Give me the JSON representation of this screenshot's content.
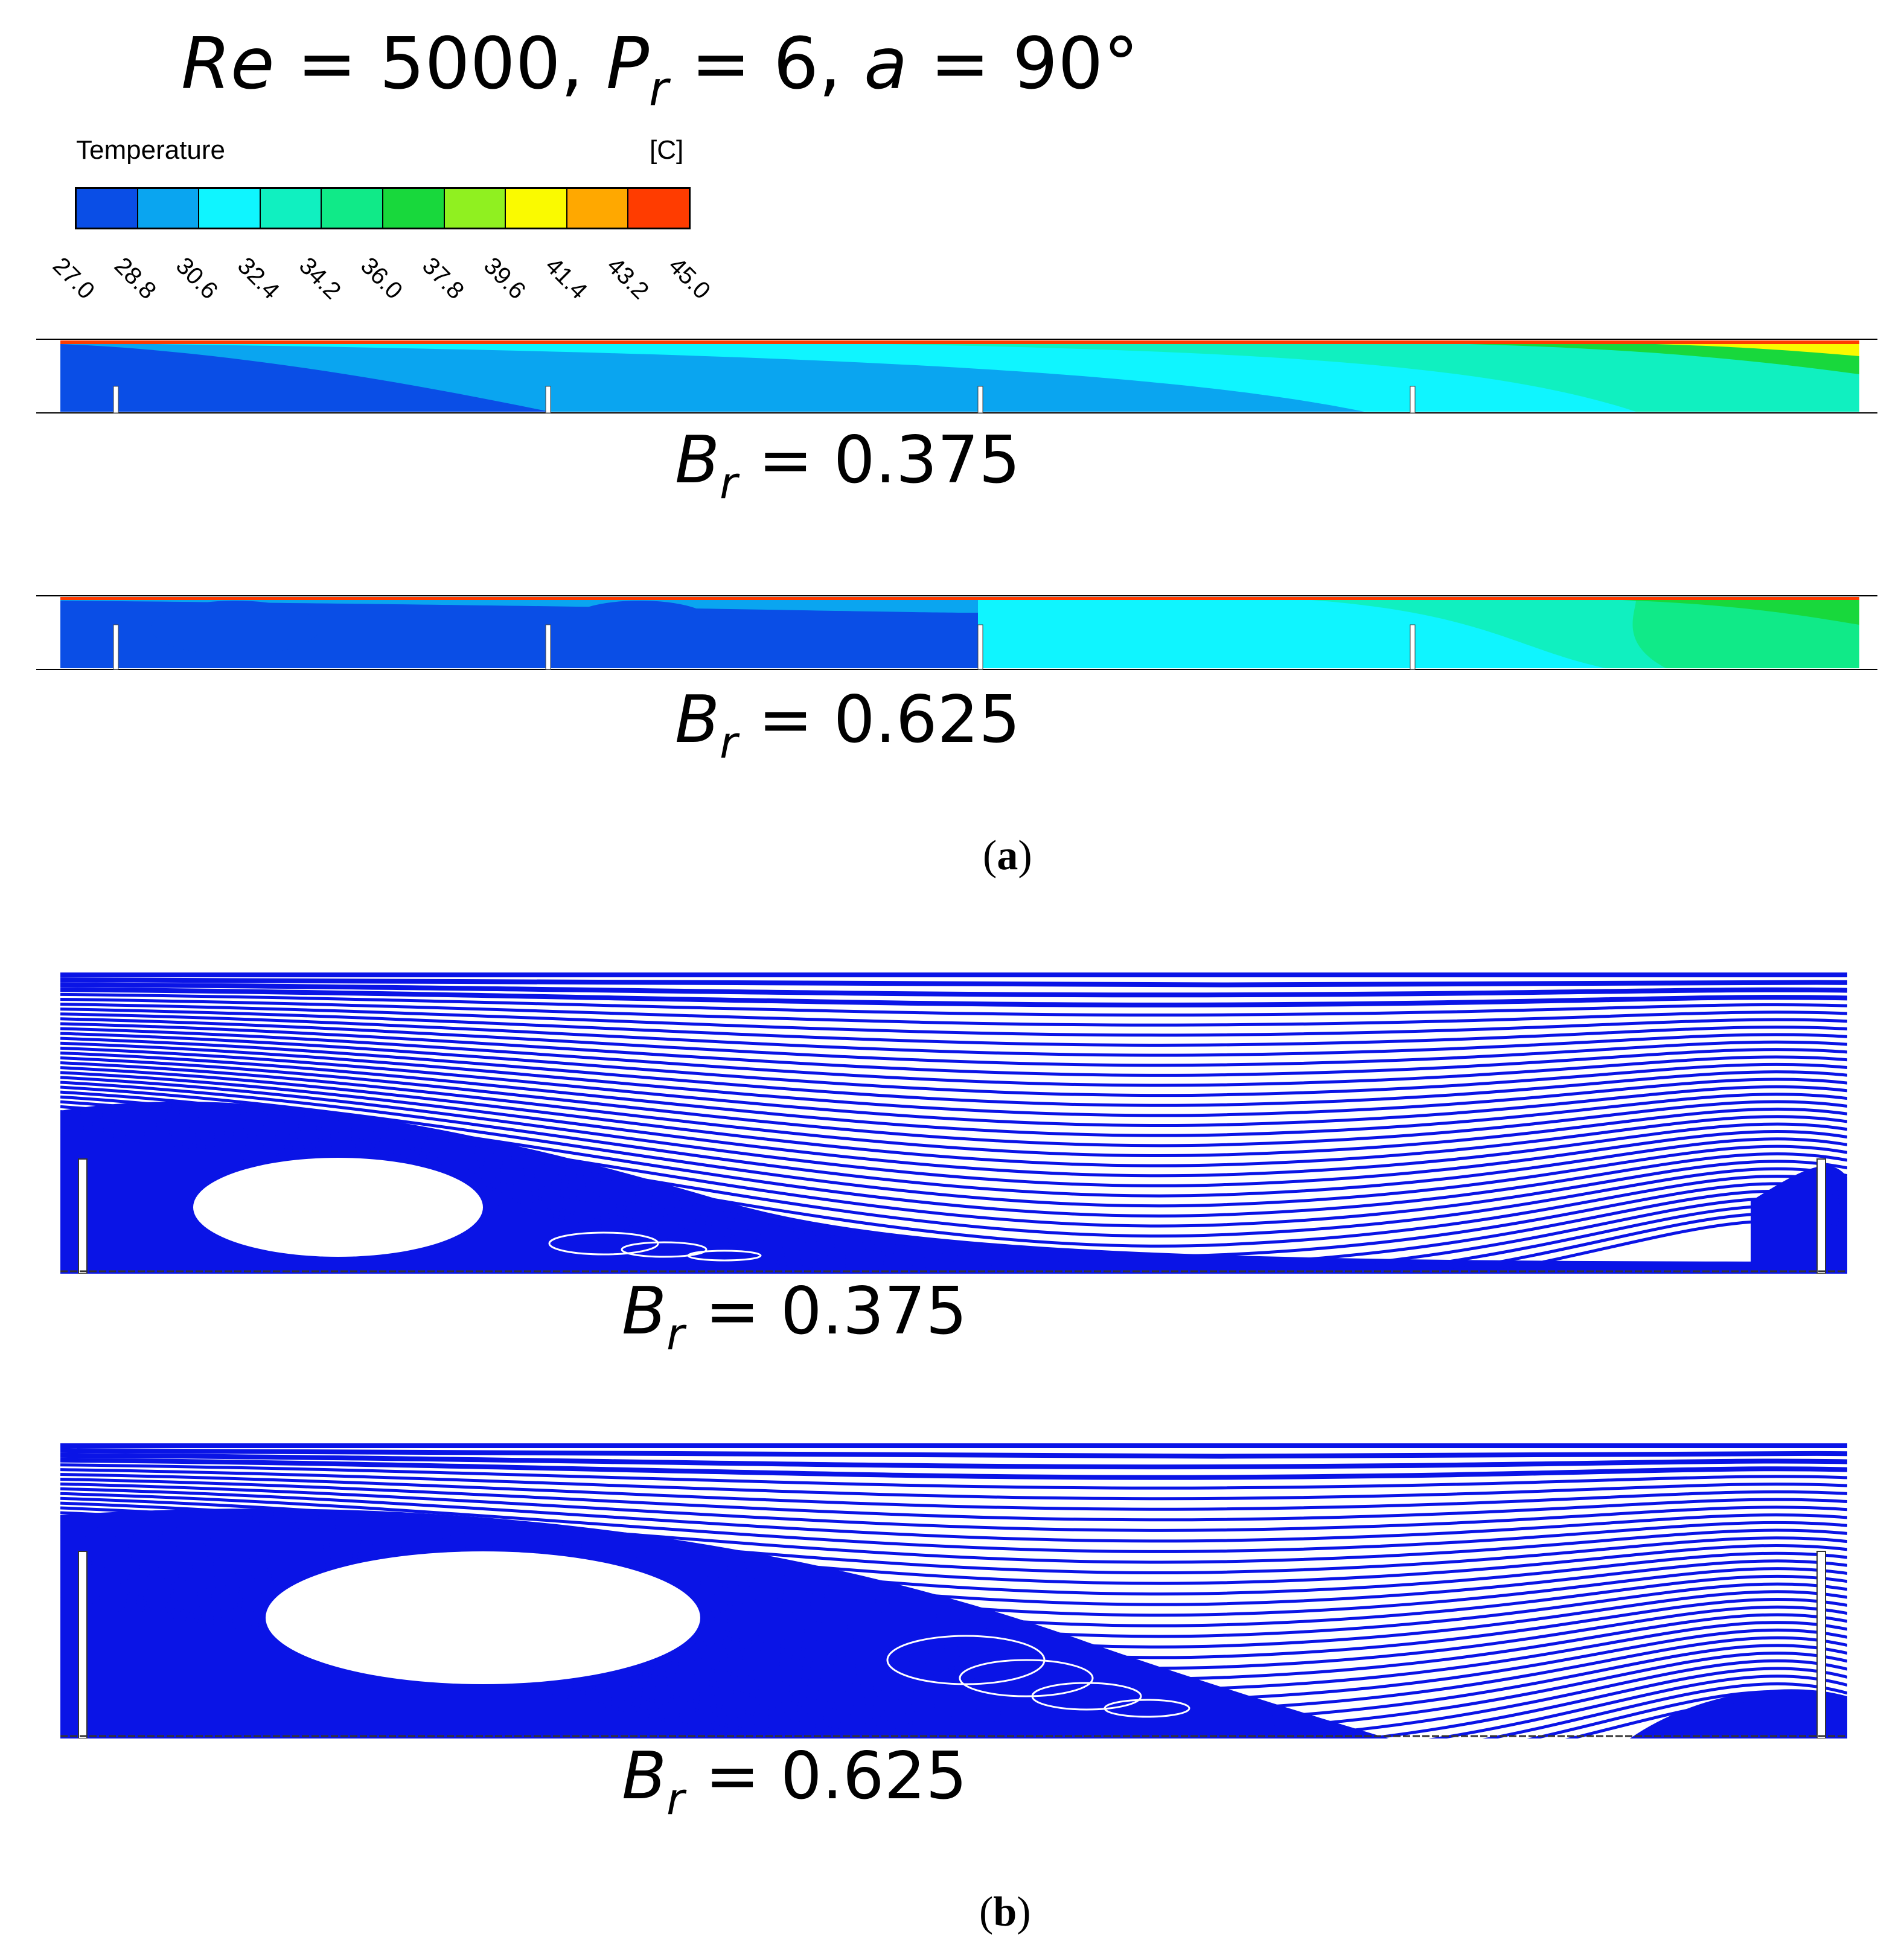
{
  "title": {
    "re": "Re",
    "re_val": " = 5000, ",
    "p": "P",
    "p_sub": "r",
    "p_val": " = 6, ",
    "a": "a",
    "a_val": " = 90°"
  },
  "legend": {
    "title": "Temperature",
    "unit": "[C]",
    "colors": [
      "#0a4ee6",
      "#0aa5f0",
      "#0ff5ff",
      "#10f0c0",
      "#10ea88",
      "#18d83c",
      "#90f020",
      "#fafa00",
      "#ffa800",
      "#ff3c00"
    ],
    "ticks": [
      "27.0",
      "28.8",
      "30.6",
      "32.4",
      "34.2",
      "36.0",
      "37.8",
      "39.6",
      "41.4",
      "43.2",
      "45.0"
    ]
  },
  "panels": {
    "a1": {
      "b": "B",
      "sub": "r",
      "val": " = 0.375"
    },
    "a2": {
      "b": "B",
      "sub": "r",
      "val": " = 0.625"
    },
    "b1": {
      "b": "B",
      "sub": "r",
      "val": " = 0.375"
    },
    "b2": {
      "b": "B",
      "sub": "r",
      "val": " = 0.625"
    }
  },
  "captions": {
    "a_open": "(",
    "a": "a",
    "a_close": ")",
    "b_open": "(",
    "b": "b",
    "b_close": ")"
  },
  "colors": {
    "stream": "#0a14e6"
  }
}
